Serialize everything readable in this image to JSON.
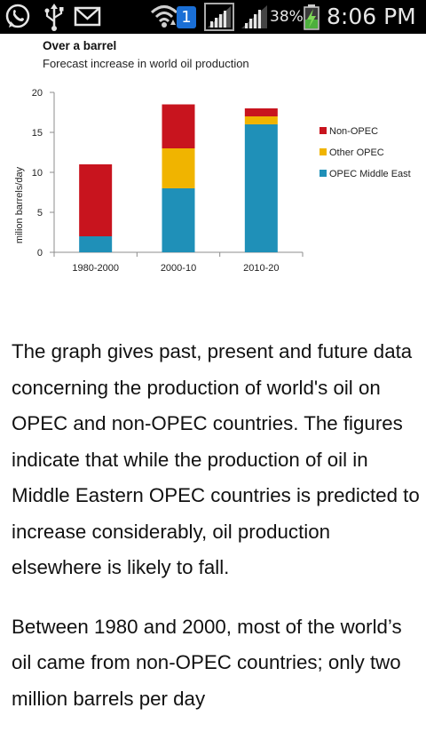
{
  "status_bar": {
    "icons": [
      "whatsapp-icon",
      "usb-icon",
      "mail-icon",
      "wifi-icon",
      "sim-1-icon",
      "no-signal-icon",
      "signal-icon",
      "battery-charging-icon"
    ],
    "sim_slot": "1",
    "battery_percent": "38%",
    "time": "8:06 PM"
  },
  "chart_data": {
    "type": "bar",
    "stacked": true,
    "title": "Over a barrel",
    "subtitle": "Forecast increase in world oil production",
    "ylabel": "milion barrels/day",
    "xlabel": "",
    "ylim": [
      0,
      20
    ],
    "yticks": [
      "0",
      "5",
      "10",
      "15",
      "20"
    ],
    "categories": [
      "1980-2000",
      "2000-10",
      "2010-20"
    ],
    "series": [
      {
        "name": "OPEC Middle East",
        "color": "#1f90b8",
        "values": [
          2,
          8,
          16
        ]
      },
      {
        "name": "Other OPEC",
        "color": "#f0b400",
        "values": [
          0,
          5,
          1
        ]
      },
      {
        "name": "Non-OPEC",
        "color": "#c8141e",
        "values": [
          9,
          5.5,
          1
        ]
      }
    ],
    "legend_order": [
      "Non-OPEC",
      "Other OPEC",
      "OPEC Middle East"
    ],
    "legend_position": "right",
    "grid": false
  },
  "article": {
    "paragraphs": [
      "The graph gives past, present and future data concerning the production of world's oil on OPEC and non-OPEC countries. The figures indicate that while the production of oil in Middle Eastern OPEC countries is predicted to increase considerably, oil production elsewhere is likely to fall.",
      "Between 1980 and 2000, most of the world’s oil came from non-OPEC countries; only two million barrels per day"
    ]
  }
}
